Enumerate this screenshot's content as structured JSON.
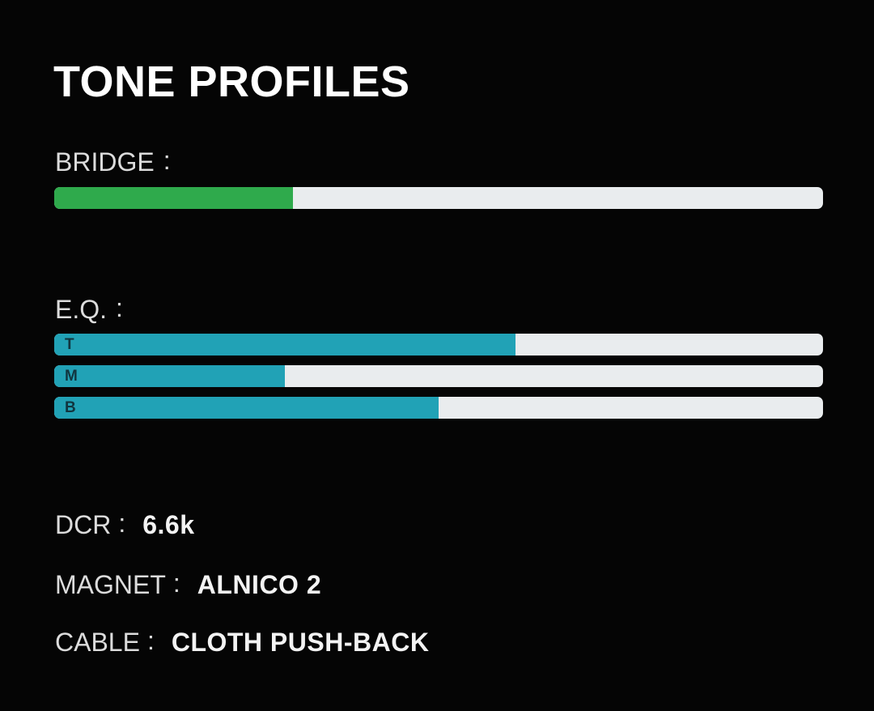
{
  "colors": {
    "bg": "#050505",
    "green": "#2faa4c",
    "teal": "#21a2b6",
    "track": "#e9ecee",
    "title-text": "#ffffff",
    "label-text": "#dcdcdc",
    "value-text": "#f3f3f3",
    "band-letter": "#11353f"
  },
  "title": "TONE PROFILES",
  "bridge": {
    "label": "BRIDGE",
    "colon": ":",
    "percent": 31
  },
  "eq": {
    "label": "E.Q.",
    "colon": ":",
    "bands": [
      {
        "key": "T",
        "percent": 60
      },
      {
        "key": "M",
        "percent": 30
      },
      {
        "key": "B",
        "percent": 50
      }
    ]
  },
  "specs": [
    {
      "label": "DCR",
      "colon": ":",
      "value": "6.6k"
    },
    {
      "label": "MAGNET",
      "colon": ":",
      "value": "ALNICO 2"
    },
    {
      "label": "CABLE",
      "colon": ":",
      "value": "CLOTH PUSH-BACK"
    }
  ],
  "chart_data": [
    {
      "type": "bar",
      "title": "BRIDGE",
      "orientation": "horizontal",
      "categories": [
        "BRIDGE"
      ],
      "values": [
        31
      ],
      "value_unit": "percent of full bar",
      "xlim": [
        0,
        100
      ],
      "bar_color": "#2faa4c",
      "track_color": "#e9ecee",
      "grid": false,
      "legend": false
    },
    {
      "type": "bar",
      "title": "E.Q.",
      "orientation": "horizontal",
      "categories": [
        "T",
        "M",
        "B"
      ],
      "values": [
        60,
        30,
        50
      ],
      "value_unit": "percent of full bar",
      "xlim": [
        0,
        100
      ],
      "bar_color": "#21a2b6",
      "track_color": "#e9ecee",
      "grid": false,
      "legend": false
    }
  ]
}
